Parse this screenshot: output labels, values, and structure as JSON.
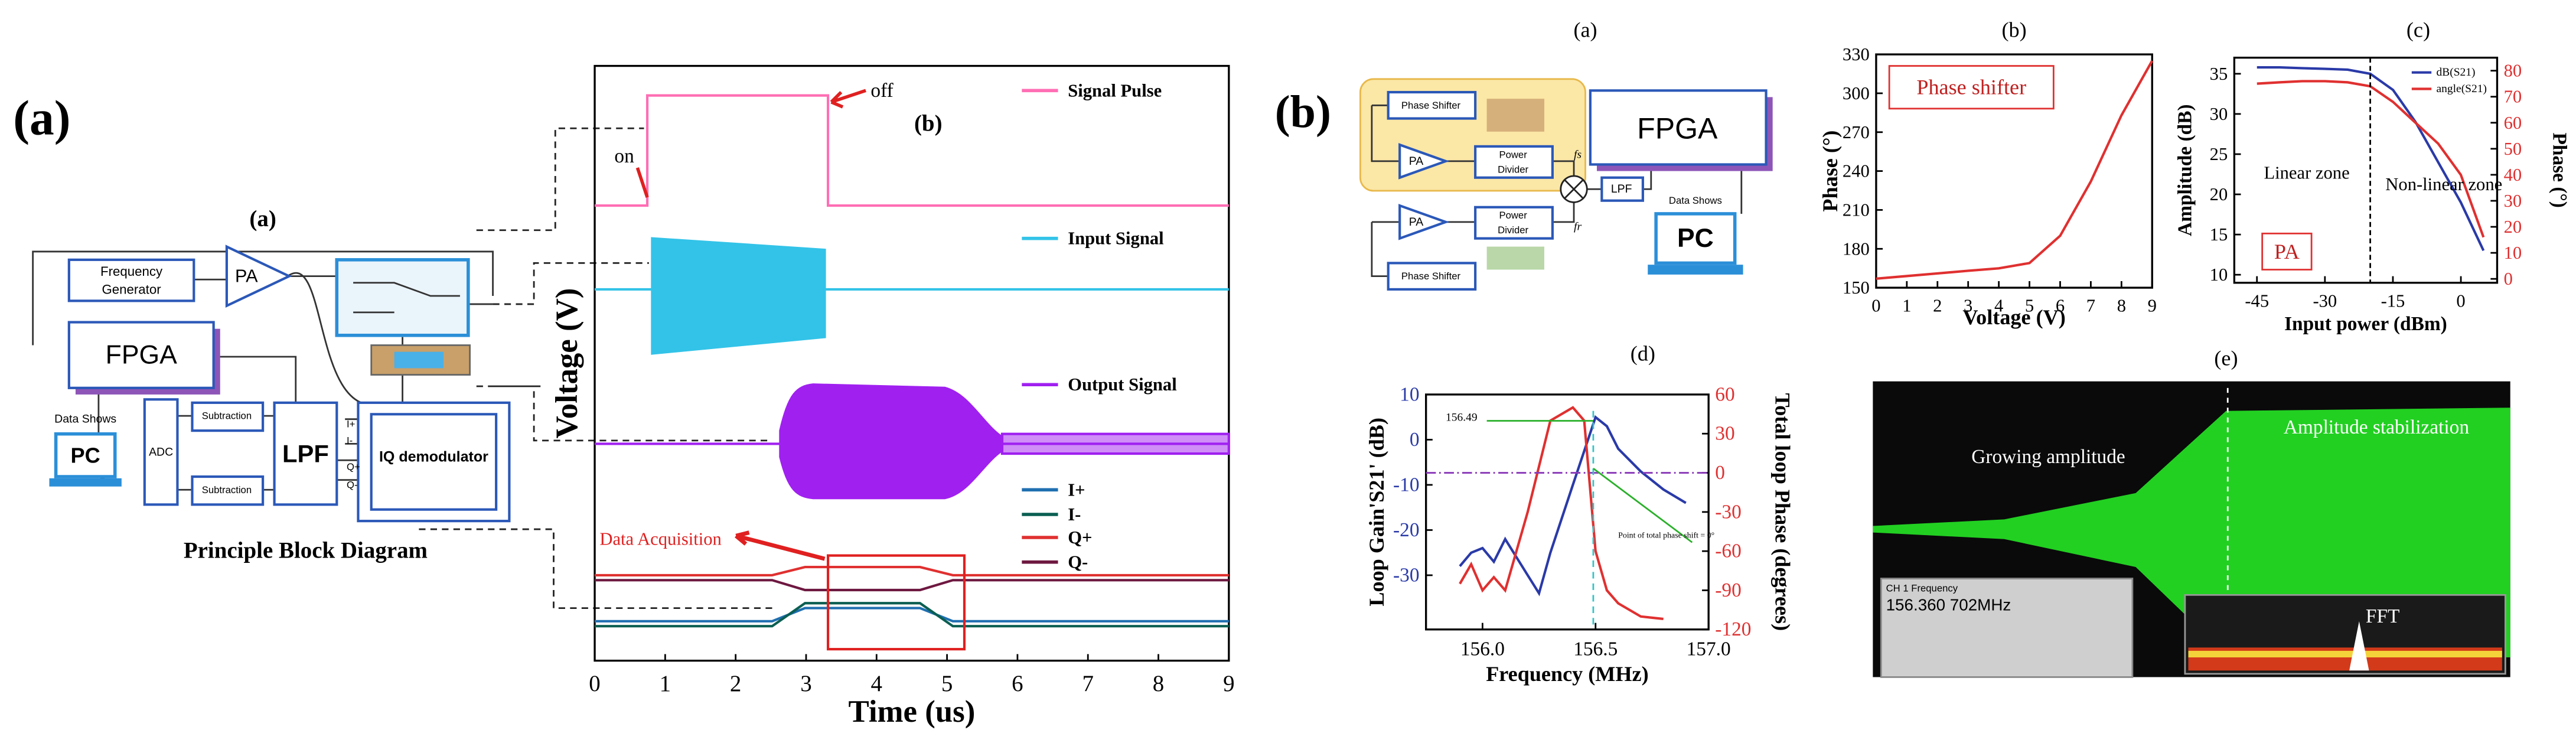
{
  "panel_labels": [
    "(a)",
    "(b)"
  ],
  "block_diagram": {
    "title": "(a)",
    "caption": "Principle Block Diagram",
    "frequency_generator": [
      "Frequency",
      "Generator"
    ],
    "pa": "PA",
    "fpga": "FPGA",
    "data_shows": "Data Shows",
    "pc": "PC",
    "adc": "ADC",
    "subtraction": [
      "Subtraction",
      "Subtraction"
    ],
    "lpf": "LPF",
    "iq_demodulator": "IQ demodulator",
    "ports": [
      "I+",
      "I-",
      "Q+",
      "Q-"
    ]
  },
  "system_diagram": {
    "title": "(a)",
    "phase_shifter": [
      "Phase Shifter",
      "Phase Shifter"
    ],
    "pa": [
      "PA",
      "PA"
    ],
    "power_divider": [
      [
        "Power",
        "Divider"
      ],
      [
        "Power",
        "Divider"
      ]
    ],
    "fpga": "FPGA",
    "lpf": "LPF",
    "data_shows": "Data Shows",
    "pc": "PC",
    "signals": [
      "fs",
      "fr"
    ]
  },
  "scope": {
    "title": "(e)",
    "annotations": [
      "Growing amplitude",
      "Amplitude stabilization",
      "FFT"
    ],
    "readout_title": "CH 1 Frequency",
    "readout_value": "156.360 702MHz"
  },
  "chart_data": [
    {
      "type": "line",
      "title": "(b)",
      "xlabel": "Time (us)",
      "ylabel": "Voltage (V)",
      "xlim": [
        0,
        9
      ],
      "xticks": [
        0,
        1,
        2,
        3,
        4,
        5,
        6,
        7,
        8,
        9
      ],
      "series": [
        {
          "name": "Signal Pulse",
          "color": "#ff6eb4"
        },
        {
          "name": "Input Signal",
          "color": "#33c3e8"
        },
        {
          "name": "Output Signal",
          "color": "#a020f0"
        },
        {
          "name": "I+",
          "color": "#1f6fb0"
        },
        {
          "name": "I-",
          "color": "#0b5f52"
        },
        {
          "name": "Q+",
          "color": "#e03030"
        },
        {
          "name": "Q-",
          "color": "#6e1840"
        }
      ],
      "annotations": [
        "on",
        "off",
        "Data Acquisition"
      ]
    },
    {
      "type": "line",
      "title": "(b)",
      "xlabel": "Voltage (V)",
      "ylabel": "Phase (°)",
      "x": [
        0,
        1,
        2,
        3,
        4,
        5,
        6,
        7,
        8,
        9
      ],
      "series": [
        {
          "color": "#e03030",
          "values": [
            157,
            159,
            161,
            163,
            165,
            169,
            190,
            232,
            283,
            325
          ]
        }
      ],
      "xlim": [
        0,
        9
      ],
      "xticks": [
        0,
        1,
        2,
        3,
        4,
        5,
        6,
        7,
        8,
        9
      ],
      "ylim": [
        150,
        330
      ],
      "yticks": [
        150,
        180,
        210,
        240,
        270,
        300,
        330
      ],
      "annotations": [
        "Phase shifter"
      ]
    },
    {
      "type": "line",
      "title": "(c)",
      "xlabel": "Input power (dBm)",
      "ylabel": "Amplitude (dB)",
      "y2label": "Phase (°)",
      "x": [
        -45,
        -40,
        -35,
        -30,
        -25,
        -20,
        -15,
        -10,
        -5,
        0,
        5
      ],
      "series": [
        {
          "name": "dB(S21)",
          "color": "#2a3aa8",
          "values": [
            35.8,
            35.8,
            35.7,
            35.6,
            35.5,
            35,
            33,
            29,
            24,
            19,
            13
          ]
        },
        {
          "name": "angle(S21)",
          "color": "#e03030",
          "axis": "y2",
          "values": [
            75,
            75.5,
            76,
            76,
            75.5,
            74,
            68,
            60,
            52,
            40,
            16
          ]
        }
      ],
      "xlim": [
        -50,
        8
      ],
      "xticks": [
        -45,
        -30,
        -15,
        0
      ],
      "ylim": [
        9,
        37
      ],
      "yticks": [
        10,
        15,
        20,
        25,
        30,
        35
      ],
      "y2lim": [
        -1.5,
        85
      ],
      "y2ticks": [
        0,
        10,
        20,
        30,
        40,
        50,
        60,
        70,
        80
      ],
      "legend": "upper right",
      "annotations": [
        "Linear zone",
        "Non-linear zone",
        "PA"
      ]
    },
    {
      "type": "line",
      "title": "(d)",
      "xlabel": "Frequency (MHz)",
      "ylabel": "Loop Gain'S21' (dB)",
      "y2label": "Total loop Phase (degrees)",
      "series": [
        {
          "color": "#2a3aa8",
          "x": [
            155.9,
            155.95,
            156.0,
            156.05,
            156.1,
            156.2,
            156.25,
            156.3,
            156.4,
            156.5,
            156.55,
            156.6,
            156.7,
            156.8,
            156.9
          ],
          "values": [
            -28,
            -25,
            -24,
            -27,
            -22,
            -30,
            -34,
            -25,
            -10,
            5,
            3,
            -2,
            -7,
            -11,
            -14
          ]
        },
        {
          "color": "#e03030",
          "axis": "y2",
          "x": [
            155.9,
            155.95,
            156.0,
            156.05,
            156.1,
            156.2,
            156.3,
            156.4,
            156.45,
            156.5,
            156.55,
            156.6,
            156.7,
            156.8
          ],
          "values": [
            -85,
            -70,
            -90,
            -80,
            -90,
            -30,
            40,
            50,
            40,
            -60,
            -90,
            -100,
            -110,
            -112
          ]
        }
      ],
      "xlim": [
        155.75,
        157.0
      ],
      "xticks": [
        {
          "value": 156.0,
          "label": "156.0"
        },
        156.5,
        {
          "value": 157.0,
          "label": "157.0"
        }
      ],
      "ylim": [
        -42,
        10
      ],
      "yticks": [
        -30,
        -20,
        -10,
        0,
        10
      ],
      "y2lim": [
        -120,
        60
      ],
      "y2ticks": [
        -120,
        -90,
        -60,
        -30,
        0,
        30,
        60
      ],
      "annotations": [
        "156.49",
        "Point of total phase shift = 0°"
      ]
    }
  ]
}
